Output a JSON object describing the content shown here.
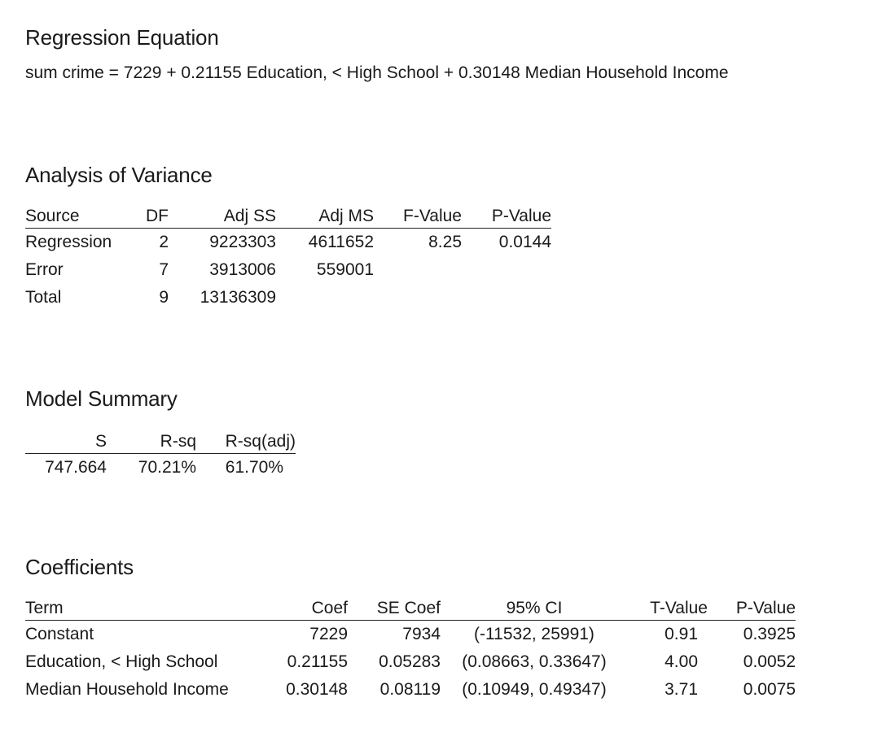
{
  "regression": {
    "title": "Regression Equation",
    "equation": "sum crime = 7229 + 0.21155 Education, < High School + 0.30148 Median Household Income"
  },
  "anova": {
    "title": "Analysis of Variance",
    "headers": [
      "Source",
      "DF",
      "Adj SS",
      "Adj MS",
      "F-Value",
      "P-Value"
    ],
    "rows": [
      [
        "Regression",
        "2",
        "9223303",
        "4611652",
        "8.25",
        "0.0144"
      ],
      [
        "Error",
        "7",
        "3913006",
        "559001",
        "",
        ""
      ],
      [
        "Total",
        "9",
        "13136309",
        "",
        "",
        ""
      ]
    ]
  },
  "model_summary": {
    "title": "Model Summary",
    "headers": [
      "S",
      "R-sq",
      "R-sq(adj)"
    ],
    "rows": [
      [
        "747.664",
        "70.21%",
        "61.70%"
      ]
    ]
  },
  "coefficients": {
    "title": "Coefficients",
    "headers": [
      "Term",
      "Coef",
      "SE Coef",
      "95% CI",
      "T-Value",
      "P-Value"
    ],
    "rows": [
      [
        "Constant",
        "7229",
        "7934",
        "(-11532, 25991)",
        "0.91",
        "0.3925"
      ],
      [
        "Education, < High School",
        "0.21155",
        "0.05283",
        "(0.08663, 0.33647)",
        "4.00",
        "0.0052"
      ],
      [
        "Median Household Income",
        "0.30148",
        "0.08119",
        "(0.10949, 0.49347)",
        "3.71",
        "0.0075"
      ]
    ]
  }
}
